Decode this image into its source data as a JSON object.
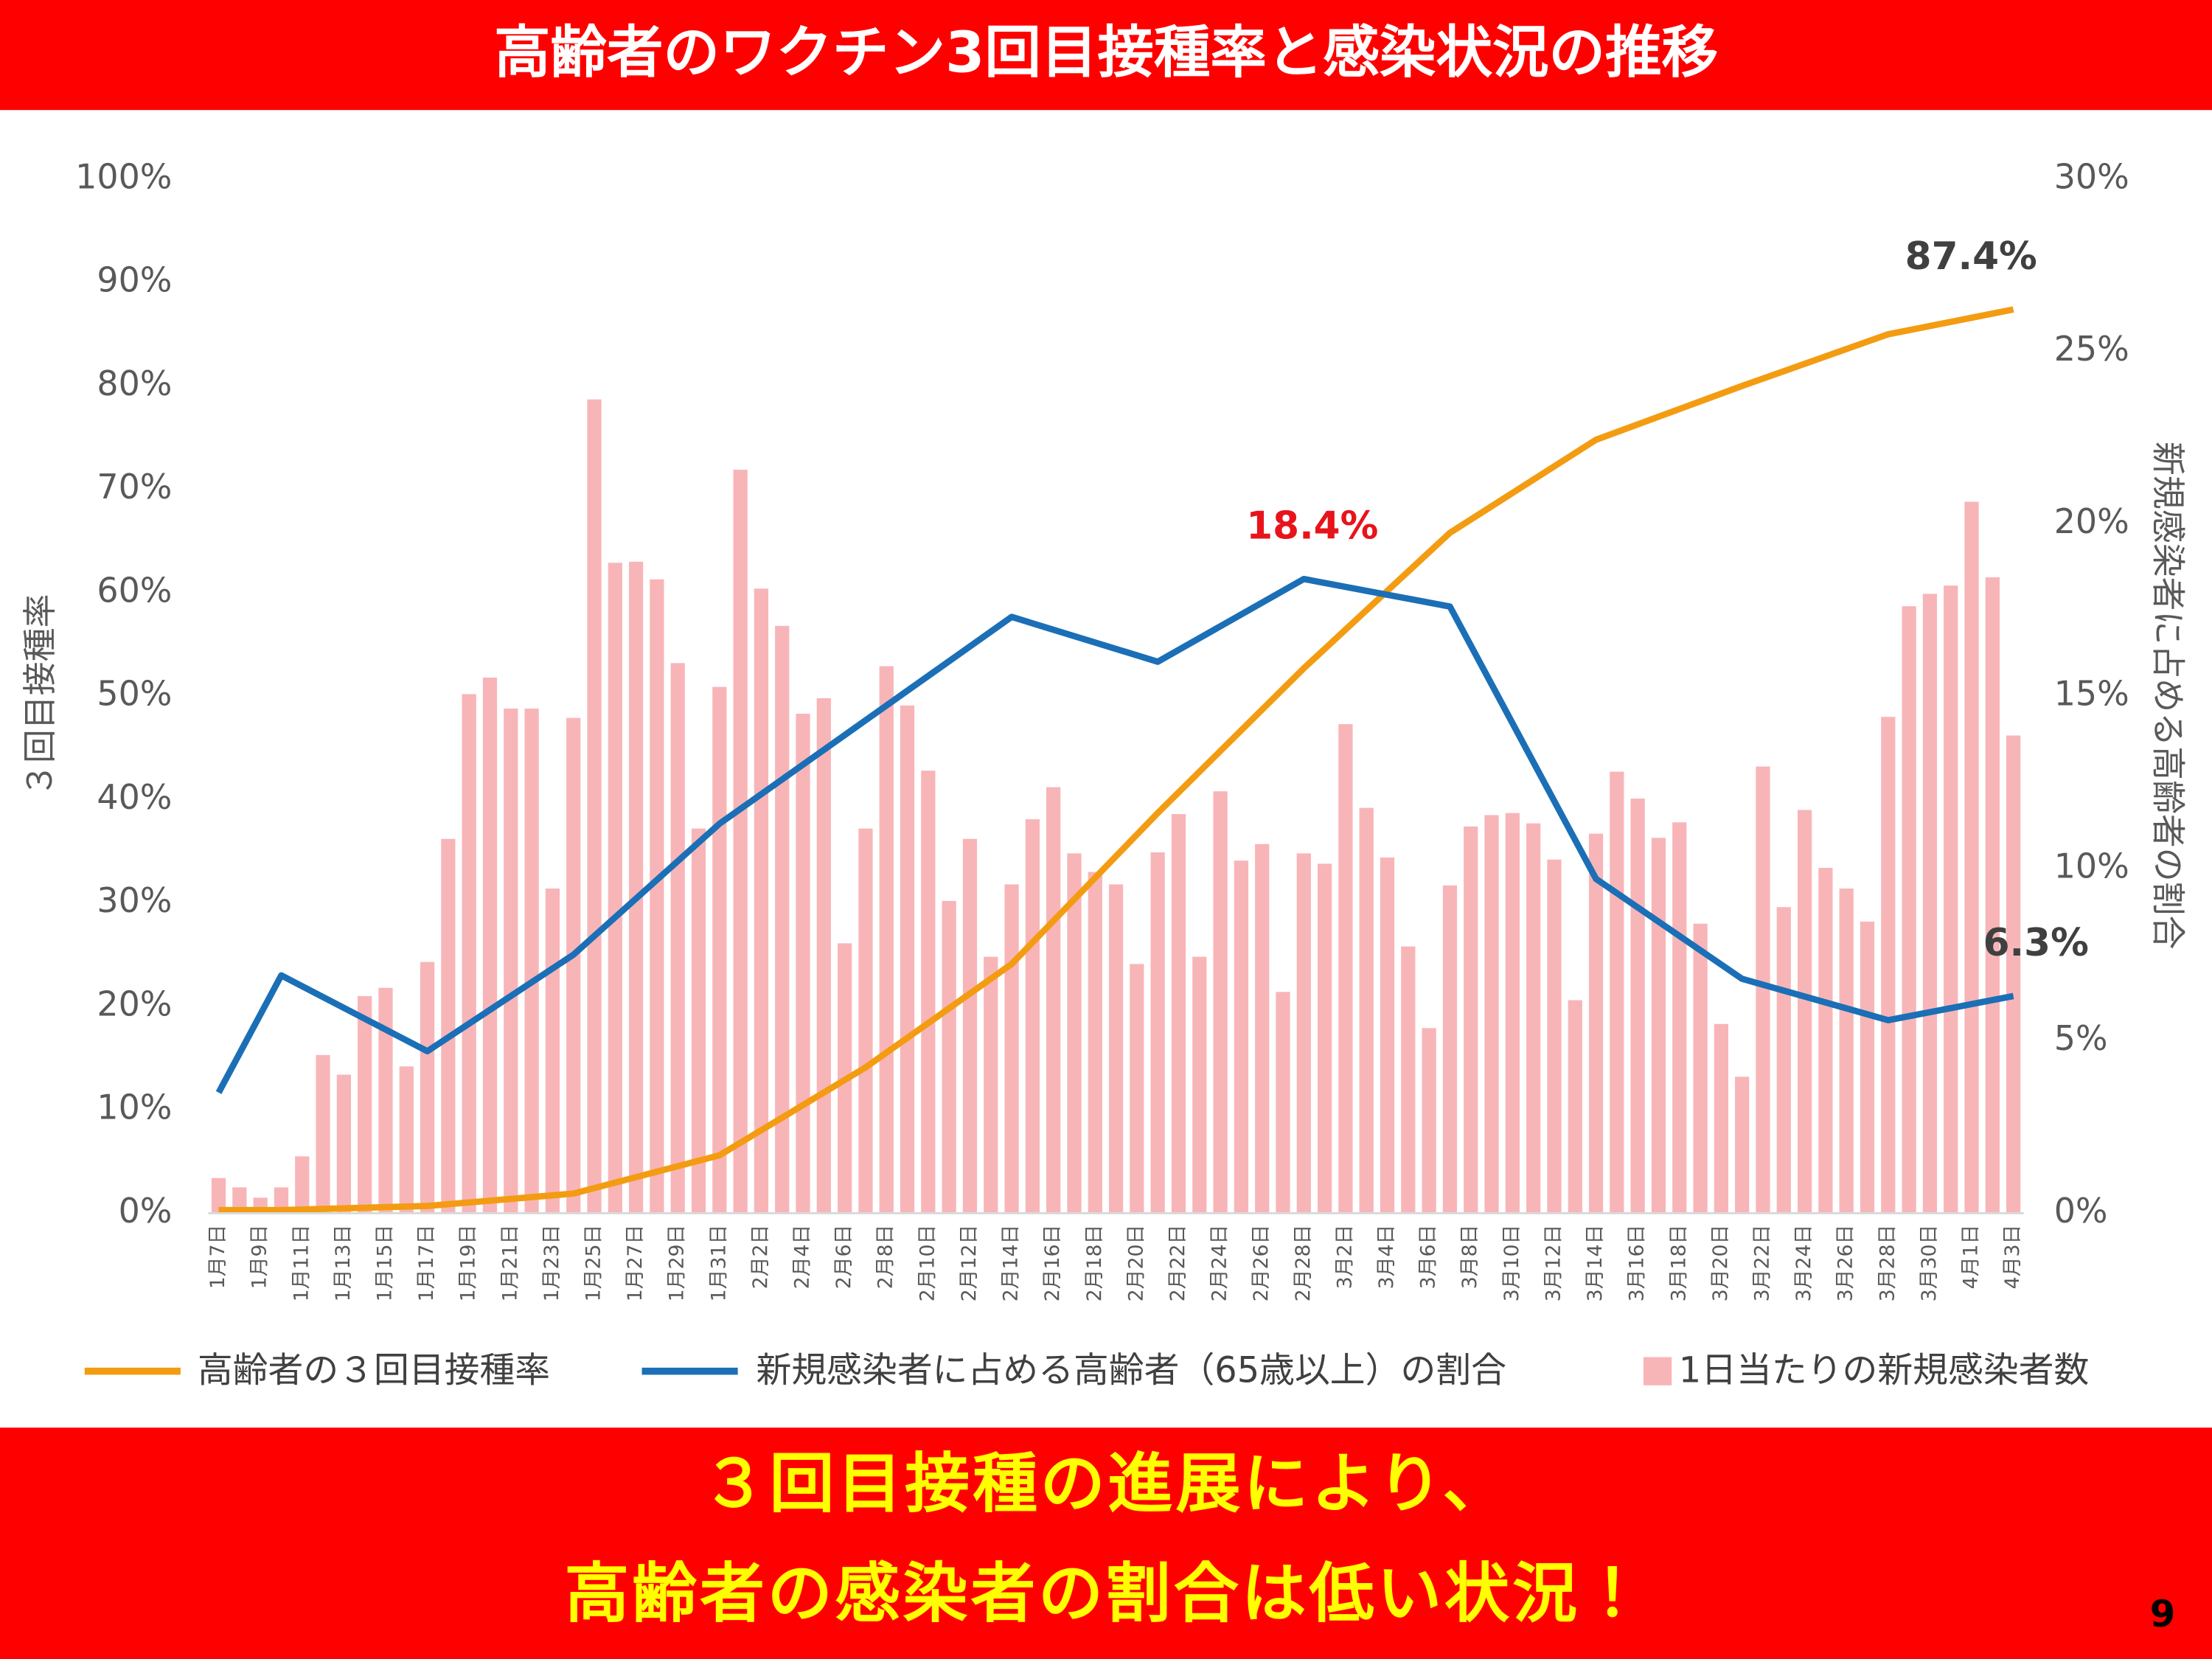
{
  "chart_data": {
    "type": "bar",
    "title": "高齢者のワクチン3回目接種率と感染状況の推移",
    "message": [
      "３回目接種の進展により、",
      "高齢者の感染者の割合は低い状況！"
    ],
    "page_number": "9",
    "y_label": "３回目接種率",
    "y2_label": "新規感染者に占める高齢者の割合",
    "ylim": [
      0,
      100
    ],
    "yticks": [
      {
        "value": 0,
        "label": "0%"
      },
      {
        "value": 10,
        "label": "10%"
      },
      {
        "value": 20,
        "label": "20%"
      },
      {
        "value": 30,
        "label": "30%"
      },
      {
        "value": 40,
        "label": "40%"
      },
      {
        "value": 50,
        "label": "50%"
      },
      {
        "value": 60,
        "label": "60%"
      },
      {
        "value": 70,
        "label": "70%"
      },
      {
        "value": 80,
        "label": "80%"
      },
      {
        "value": 90,
        "label": "90%"
      },
      {
        "value": 100,
        "label": "100%"
      }
    ],
    "y2lim": [
      0,
      30
    ],
    "y2ticks": [
      {
        "value": 0,
        "label": "0%"
      },
      {
        "value": 5,
        "label": "5%"
      },
      {
        "value": 10,
        "label": "10%"
      },
      {
        "value": 15,
        "label": "15%"
      },
      {
        "value": 20,
        "label": "20%"
      },
      {
        "value": 25,
        "label": "25%"
      },
      {
        "value": 30,
        "label": "30%"
      }
    ],
    "categories": [
      "1月7日",
      null,
      "1月9日",
      null,
      "1月11日",
      null,
      "1月13日",
      null,
      "1月15日",
      null,
      "1月17日",
      null,
      "1月19日",
      null,
      "1月21日",
      null,
      "1月23日",
      null,
      "1月25日",
      null,
      "1月27日",
      null,
      "1月29日",
      null,
      "1月31日",
      null,
      "2月2日",
      null,
      "2月4日",
      null,
      "2月6日",
      null,
      "2月8日",
      null,
      "2月10日",
      null,
      "2月12日",
      null,
      "2月14日",
      null,
      "2月16日",
      null,
      "2月18日",
      null,
      "2月20日",
      null,
      "2月22日",
      null,
      "2月24日",
      null,
      "2月26日",
      null,
      "2月28日",
      null,
      "3月2日",
      null,
      "3月4日",
      null,
      "3月6日",
      null,
      "3月8日",
      null,
      "3月10日",
      null,
      "3月12日",
      null,
      "3月14日",
      null,
      "3月16日",
      null,
      "3月18日",
      null,
      "3月20日",
      null,
      "3月22日",
      null,
      "3月24日",
      null,
      "3月26日",
      null,
      "3月28日",
      null,
      "3月30日",
      null,
      "4月1日",
      null,
      "4月3日"
    ],
    "series": [
      {
        "name": "高齢者の３回目接種率",
        "type": "line",
        "axis": "y",
        "color": "#f39c12",
        "values": [
          0.3,
          null,
          null,
          0.3,
          null,
          null,
          null,
          null,
          null,
          null,
          0.7,
          null,
          null,
          null,
          null,
          null,
          null,
          1.9,
          null,
          null,
          null,
          null,
          null,
          null,
          5.6,
          null,
          null,
          null,
          null,
          null,
          null,
          14.1,
          null,
          null,
          null,
          null,
          null,
          null,
          24.1,
          null,
          null,
          null,
          null,
          null,
          null,
          38.7,
          null,
          null,
          null,
          null,
          null,
          null,
          52.7,
          null,
          null,
          null,
          null,
          null,
          null,
          65.8,
          null,
          null,
          null,
          null,
          null,
          null,
          74.8,
          null,
          null,
          null,
          null,
          null,
          null,
          80,
          null,
          null,
          null,
          null,
          null,
          null,
          85,
          null,
          null,
          null,
          null,
          null,
          87.4
        ],
        "value_labels": [
          null,
          null,
          null,
          null,
          null,
          null,
          null,
          null,
          null,
          null,
          null,
          null,
          null,
          null,
          null,
          null,
          null,
          null,
          null,
          null,
          null,
          null,
          null,
          null,
          null,
          null,
          null,
          null,
          null,
          null,
          null,
          null,
          null,
          null,
          null,
          null,
          null,
          null,
          null,
          null,
          null,
          null,
          null,
          null,
          null,
          null,
          null,
          null,
          null,
          null,
          null,
          null,
          null,
          null,
          null,
          null,
          null,
          null,
          null,
          null,
          null,
          null,
          null,
          null,
          null,
          null,
          null,
          null,
          null,
          null,
          null,
          null,
          null,
          null,
          null,
          null,
          null,
          null,
          null,
          null,
          null,
          null,
          null,
          null,
          null,
          null,
          "87.4%"
        ]
      },
      {
        "name": "新規感染者に占める高齢者（65歳以上）の割合",
        "type": "line",
        "axis": "y2",
        "color": "#1b6fb6",
        "values": [
          3.5,
          null,
          null,
          6.9,
          null,
          null,
          null,
          null,
          null,
          null,
          4.7,
          null,
          null,
          null,
          null,
          null,
          null,
          7.5,
          null,
          null,
          null,
          null,
          null,
          null,
          11.3,
          null,
          null,
          null,
          null,
          null,
          null,
          14.3,
          null,
          null,
          null,
          null,
          null,
          null,
          17.3,
          null,
          null,
          null,
          null,
          null,
          null,
          16,
          null,
          null,
          null,
          null,
          null,
          null,
          18.4,
          null,
          null,
          null,
          null,
          null,
          null,
          17.6,
          null,
          null,
          null,
          null,
          null,
          null,
          9.7,
          null,
          null,
          null,
          null,
          null,
          null,
          6.8,
          null,
          null,
          null,
          null,
          null,
          null,
          5.6,
          null,
          null,
          null,
          null,
          null,
          6.3
        ],
        "value_labels": [
          null,
          null,
          null,
          null,
          null,
          null,
          null,
          null,
          null,
          null,
          null,
          null,
          null,
          null,
          null,
          null,
          null,
          null,
          null,
          null,
          null,
          null,
          null,
          null,
          null,
          null,
          null,
          null,
          null,
          null,
          null,
          null,
          null,
          null,
          null,
          null,
          null,
          null,
          null,
          null,
          null,
          null,
          null,
          null,
          null,
          null,
          null,
          null,
          null,
          null,
          null,
          null,
          "18.4%",
          null,
          null,
          null,
          null,
          null,
          null,
          null,
          null,
          null,
          null,
          null,
          null,
          null,
          null,
          null,
          null,
          null,
          null,
          null,
          null,
          null,
          null,
          null,
          null,
          null,
          null,
          null,
          null,
          null,
          null,
          null,
          null,
          null,
          "6.3%"
        ]
      },
      {
        "name": "1日当たりの新規感染者数",
        "type": "bar",
        "axis": "y",
        "color": "#f8b5b8",
        "values": [
          3.4,
          2.5,
          1.5,
          2.5,
          5.5,
          15.3,
          13.4,
          21,
          21.8,
          14.2,
          24.3,
          36.2,
          50.2,
          51.8,
          48.8,
          48.8,
          31.4,
          47.9,
          78.7,
          62.9,
          63,
          61.3,
          53.2,
          37.2,
          50.9,
          71.9,
          60.4,
          56.8,
          48.3,
          49.8,
          26.1,
          37.2,
          52.9,
          49.1,
          42.8,
          30.2,
          36.2,
          24.8,
          31.8,
          38.1,
          41.2,
          34.8,
          33,
          31.8,
          24.1,
          34.9,
          38.6,
          24.8,
          40.8,
          34.1,
          35.7,
          21.4,
          34.8,
          33.8,
          47.3,
          39.2,
          34.4,
          25.8,
          17.9,
          31.7,
          37.4,
          38.5,
          38.7,
          37.7,
          34.2,
          20.6,
          36.7,
          42.7,
          40.1,
          36.3,
          37.8,
          28,
          18.3,
          13.2,
          43.2,
          29.6,
          39,
          33.4,
          31.4,
          28.2,
          48,
          58.7,
          59.9,
          60.7,
          68.8,
          61.5,
          46.2
        ]
      }
    ]
  }
}
